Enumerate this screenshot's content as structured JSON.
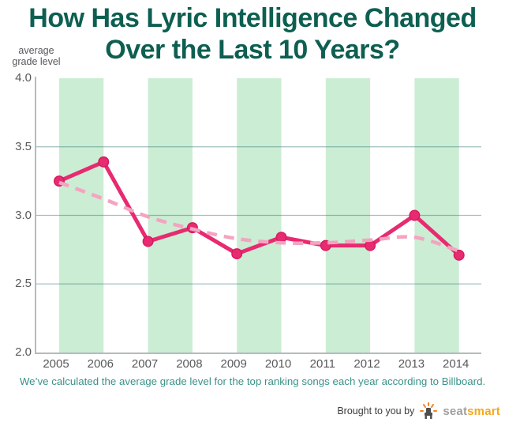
{
  "title": {
    "line1": "How Has Lyric Intelligence Changed",
    "line2": "Over the Last 10 Years?"
  },
  "y_axis_unit": "average grade level",
  "caption": "We’ve calculated the average grade level for the top ranking songs each year according to Billboard.",
  "footer": {
    "prefix": "Brought to you by",
    "brand_gray": "seat",
    "brand_orange": "smart",
    "logo_icon": "seat-chair-icon"
  },
  "chart_data": {
    "type": "line",
    "title": "How Has Lyric Intelligence Changed Over the Last 10 Years?",
    "ylabel": "average grade level",
    "xlabel": "",
    "x": [
      2005,
      2006,
      2007,
      2008,
      2009,
      2010,
      2011,
      2012,
      2013,
      2014
    ],
    "series": [
      {
        "name": "average grade level",
        "style": "solid",
        "marker": true,
        "color": "#e82a71",
        "values": [
          3.25,
          3.39,
          2.81,
          2.91,
          2.72,
          2.84,
          2.78,
          2.78,
          3.0,
          2.71
        ]
      },
      {
        "name": "trend",
        "style": "dashed",
        "marker": false,
        "color": "#f4a4c1",
        "values": [
          3.24,
          3.12,
          2.99,
          2.9,
          2.83,
          2.8,
          2.8,
          2.82,
          2.84,
          2.74
        ]
      }
    ],
    "ylim": [
      2.0,
      4.0
    ],
    "yticks": [
      "4.0",
      "3.5",
      "3.0",
      "2.5",
      "2.0"
    ],
    "ytick_values": [
      4.0,
      3.5,
      3.0,
      2.5,
      2.0
    ],
    "gridline_values": [
      3.5,
      3.0,
      2.5
    ],
    "grid": "horizontal",
    "legend": "none",
    "background_bands": {
      "color": "#cbedd3",
      "year_pairs": [
        [
          2005,
          2006
        ],
        [
          2007,
          2008
        ],
        [
          2009,
          2010
        ],
        [
          2011,
          2012
        ],
        [
          2013,
          2014
        ]
      ]
    }
  },
  "colors": {
    "title": "#0d5f51",
    "caption": "#3a928a",
    "tick_text": "#58595b",
    "axis_line": "#b4bcbd",
    "gridline": "#2e7378",
    "band": "#cbedd3",
    "line": "#e82a71",
    "marker_stroke": "#d6195f",
    "trend": "#f4a4c1",
    "footer_text": "#3c3c3c",
    "brand_gray": "#a0a0a0",
    "brand_orange": "#f5a81c",
    "chair": "#4d4d4d",
    "rays": "#f5821f"
  }
}
